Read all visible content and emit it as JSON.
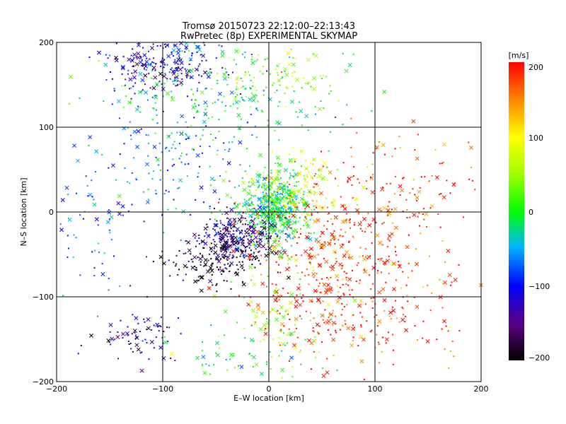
{
  "chart_data": {
    "type": "scatter",
    "title": "Tromsø 20150723 22:12:00–22:13:43",
    "subtitle": "RwPretec (8p) EXPERIMENTAL SKYMAP",
    "xlabel": "E–W location [km]",
    "ylabel": "N–S location [km]",
    "xlim": [
      -200,
      200
    ],
    "ylim": [
      -200,
      200
    ],
    "xticks": [
      "−200",
      "−100",
      "0",
      "100",
      "200"
    ],
    "yticks": [
      "−200",
      "−100",
      "0",
      "100",
      "200"
    ],
    "grid": true,
    "colorbar": {
      "label": "[m/s]",
      "range": [
        -200,
        200
      ],
      "ticks": [
        "200",
        "100",
        "0",
        "−100",
        "−200"
      ]
    },
    "marker_types": [
      "dot",
      "cross"
    ],
    "clusters": [
      {
        "center": [
          5,
          5
        ],
        "spread": [
          16,
          22
        ],
        "velocity": -10,
        "count": 520
      },
      {
        "center": [
          -30,
          -30
        ],
        "spread": [
          18,
          14
        ],
        "velocity": -150,
        "count": 260
      },
      {
        "center": [
          -50,
          -60
        ],
        "spread": [
          25,
          15
        ],
        "velocity": -200,
        "count": 140
      },
      {
        "center": [
          -100,
          175
        ],
        "spread": [
          28,
          22
        ],
        "velocity": -120,
        "count": 240
      },
      {
        "center": [
          -120,
          -150
        ],
        "spread": [
          20,
          15
        ],
        "velocity": -140,
        "count": 70
      },
      {
        "center": [
          -40,
          140
        ],
        "spread": [
          60,
          30
        ],
        "velocity": -20,
        "count": 230
      },
      {
        "center": [
          0,
          160
        ],
        "spread": [
          40,
          20
        ],
        "velocity": 60,
        "count": 80
      },
      {
        "center": [
          30,
          30
        ],
        "spread": [
          25,
          20
        ],
        "velocity": 80,
        "count": 120
      },
      {
        "center": [
          -90,
          60
        ],
        "spread": [
          40,
          40
        ],
        "velocity": -60,
        "count": 150
      },
      {
        "center": [
          60,
          -30
        ],
        "spread": [
          40,
          40
        ],
        "velocity": 180,
        "count": 280
      },
      {
        "center": [
          60,
          -120
        ],
        "spread": [
          40,
          30
        ],
        "velocity": 190,
        "count": 200
      },
      {
        "center": [
          130,
          30
        ],
        "spread": [
          40,
          40
        ],
        "velocity": 190,
        "count": 110
      },
      {
        "center": [
          140,
          -120
        ],
        "spread": [
          40,
          40
        ],
        "velocity": 185,
        "count": 60
      },
      {
        "center": [
          10,
          -120
        ],
        "spread": [
          25,
          40
        ],
        "velocity": 60,
        "count": 90
      },
      {
        "center": [
          -160,
          -30
        ],
        "spread": [
          30,
          50
        ],
        "velocity": -80,
        "count": 70
      },
      {
        "center": [
          -20,
          -170
        ],
        "spread": [
          40,
          20
        ],
        "velocity": 0,
        "count": 60
      }
    ]
  }
}
